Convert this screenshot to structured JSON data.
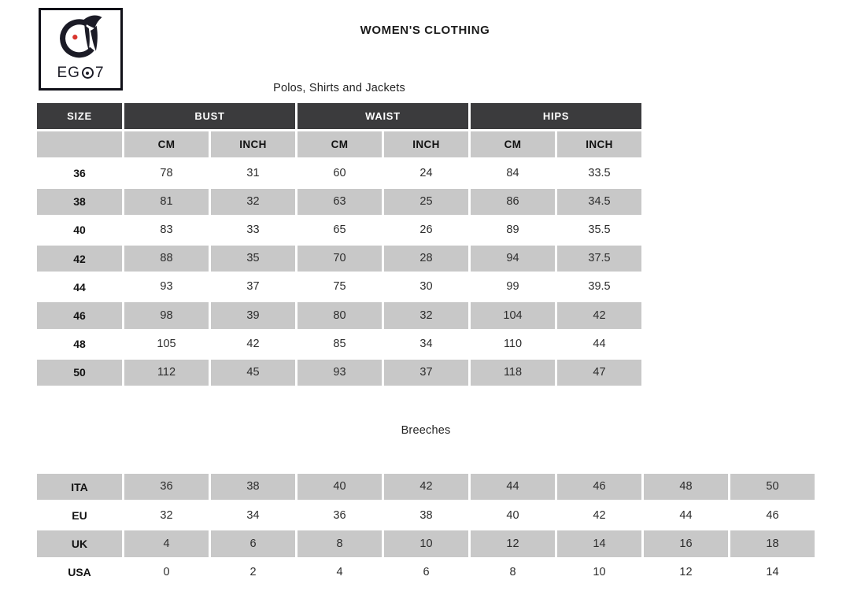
{
  "header": {
    "title": "WOMEN'S CLOTHING"
  },
  "logo": {
    "brand": "EGO7",
    "wordmark_left": "EG",
    "wordmark_right": "7",
    "ink_color": "#1b1b26",
    "accent_color": "#d9362f"
  },
  "polos_table": {
    "title": "Polos, Shirts and Jackets",
    "group_headers": [
      {
        "label": "SIZE",
        "span": 1
      },
      {
        "label": "BUST",
        "span": 2
      },
      {
        "label": "WAIST",
        "span": 2
      },
      {
        "label": "HIPS",
        "span": 2
      }
    ],
    "sub_headers": [
      "",
      "CM",
      "INCH",
      "CM",
      "INCH",
      "CM",
      "INCH"
    ],
    "rows": [
      [
        "36",
        "78",
        "31",
        "60",
        "24",
        "84",
        "33.5"
      ],
      [
        "38",
        "81",
        "32",
        "63",
        "25",
        "86",
        "34.5"
      ],
      [
        "40",
        "83",
        "33",
        "65",
        "26",
        "89",
        "35.5"
      ],
      [
        "42",
        "88",
        "35",
        "70",
        "28",
        "94",
        "37.5"
      ],
      [
        "44",
        "93",
        "37",
        "75",
        "30",
        "99",
        "39.5"
      ],
      [
        "46",
        "98",
        "39",
        "80",
        "32",
        "104",
        "42"
      ],
      [
        "48",
        "105",
        "42",
        "85",
        "34",
        "110",
        "44"
      ],
      [
        "50",
        "112",
        "45",
        "93",
        "37",
        "118",
        "47"
      ]
    ]
  },
  "breeches_table": {
    "title": "Breeches",
    "rows": [
      [
        "ITA",
        "36",
        "38",
        "40",
        "42",
        "44",
        "46",
        "48",
        "50"
      ],
      [
        "EU",
        "32",
        "34",
        "36",
        "38",
        "40",
        "42",
        "44",
        "46"
      ],
      [
        "UK",
        "4",
        "6",
        "8",
        "10",
        "12",
        "14",
        "16",
        "18"
      ],
      [
        "USA",
        "0",
        "2",
        "4",
        "6",
        "8",
        "10",
        "12",
        "14"
      ]
    ]
  },
  "colors": {
    "header_bg": "#3b3b3d",
    "header_text": "#ffffff",
    "stripe_bg": "#c8c8c8",
    "body_text": "#2d2d2d"
  }
}
